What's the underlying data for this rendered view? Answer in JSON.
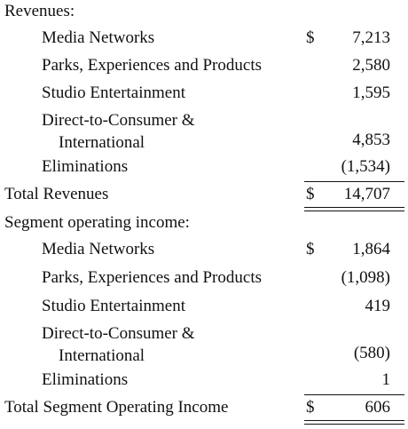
{
  "revenues": {
    "heading": "Revenues:",
    "currency_symbol": "$",
    "rows": [
      {
        "label": "Media Networks",
        "value": "7,213"
      },
      {
        "label": "Parks, Experiences and Products",
        "value": "2,580"
      },
      {
        "label": "Studio Entertainment",
        "value": "1,595"
      },
      {
        "label_line1": "Direct-to-Consumer &",
        "label_line2": "International",
        "value": "4,853"
      },
      {
        "label": "Eliminations",
        "value": "(1,534)"
      }
    ],
    "total_label": "Total Revenues",
    "total_currency": "$",
    "total_value": "14,707"
  },
  "segment_operating_income": {
    "heading": "Segment operating income:",
    "currency_symbol": "$",
    "rows": [
      {
        "label": "Media Networks",
        "value": "1,864"
      },
      {
        "label": "Parks, Experiences and Products",
        "value": "(1,098)"
      },
      {
        "label": "Studio Entertainment",
        "value": "419"
      },
      {
        "label_line1": "Direct-to-Consumer &",
        "label_line2": "International",
        "value": "(580)"
      },
      {
        "label": "Eliminations",
        "value": "1"
      }
    ],
    "total_label": "Total Segment Operating Income",
    "total_currency": "$",
    "total_value": "606"
  }
}
